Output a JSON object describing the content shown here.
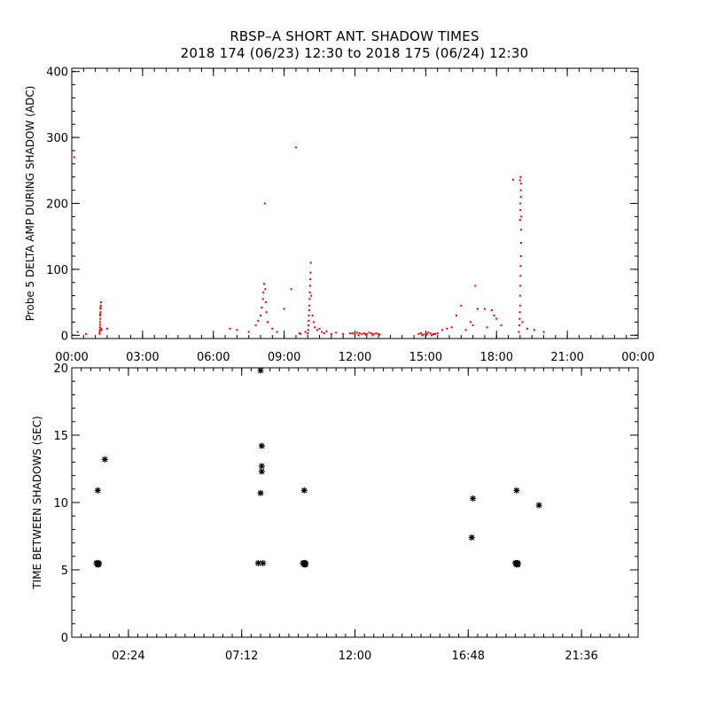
{
  "title_line1": "RBSP–A SHORT ANT. SHADOW TIMES",
  "title_line2": "2018 174 (06/23) 12:30 to 2018 175 (06/24) 12:30",
  "colors": {
    "series_top": "#dd0000",
    "series_bottom": "#000000",
    "axis": "#000000"
  },
  "chart_data": [
    {
      "type": "scatter",
      "ylabel": "Probe 5 DELTA AMP DURING SHADOW (ADC)",
      "xlabel": "",
      "xlim": [
        0,
        24
      ],
      "ylim": [
        -5,
        405
      ],
      "xticks": [
        0,
        3,
        6,
        9,
        12,
        15,
        18,
        21,
        24
      ],
      "xtick_labels": [
        "00:00",
        "03:00",
        "06:00",
        "09:00",
        "12:00",
        "15:00",
        "18:00",
        "21:00",
        "00:00"
      ],
      "yticks": [
        0,
        100,
        200,
        300,
        400
      ],
      "ytick_labels": [
        "0",
        "100",
        "200",
        "300",
        "400"
      ],
      "grid": false,
      "marker": "dot",
      "x": [
        0.1,
        0.25,
        0.6,
        1.18,
        1.18,
        1.19,
        1.19,
        1.2,
        1.2,
        1.21,
        1.21,
        1.22,
        1.22,
        1.23,
        1.24,
        1.25,
        1.26,
        1.2,
        1.22,
        1.5,
        6.7,
        7.0,
        7.5,
        7.8,
        7.9,
        8.0,
        8.05,
        8.1,
        8.12,
        8.15,
        8.18,
        8.2,
        8.22,
        8.25,
        8.3,
        8.5,
        8.7,
        9.0,
        9.3,
        9.5,
        9.65,
        9.7,
        9.9,
        10.0,
        10.02,
        10.03,
        10.04,
        10.05,
        10.06,
        10.07,
        10.08,
        10.09,
        10.1,
        10.11,
        10.12,
        10.13,
        10.15,
        10.2,
        10.25,
        10.3,
        10.4,
        10.5,
        10.6,
        10.7,
        10.8,
        11.0,
        11.2,
        11.5,
        11.8,
        11.9,
        12.0,
        12.1,
        12.2,
        12.3,
        12.4,
        12.5,
        12.6,
        12.7,
        12.8,
        12.9,
        13.0,
        13.05,
        12.15,
        12.45,
        12.75,
        14.7,
        14.8,
        14.9,
        15.0,
        15.1,
        15.2,
        15.3,
        15.4,
        15.5,
        14.85,
        15.05,
        15.25,
        15.35,
        15.7,
        15.9,
        16.1,
        16.3,
        16.5,
        16.7,
        16.9,
        17.0,
        17.1,
        17.2,
        17.5,
        17.6,
        17.8,
        17.9,
        18.0,
        18.2,
        18.7,
        18.95,
        18.97,
        18.98,
        18.99,
        19.0,
        19.0,
        19.01,
        19.02,
        19.02,
        19.03,
        19.04,
        19.05,
        19.0,
        19.01,
        19.03,
        19.02,
        19.0,
        19.04,
        19.03,
        19.01,
        19.05,
        19.1,
        19.3,
        19.6,
        20.0
      ],
      "y": [
        270,
        5,
        2,
        2,
        5,
        8,
        12,
        16,
        20,
        25,
        30,
        35,
        40,
        45,
        50,
        10,
        8,
        32,
        42,
        10,
        10,
        8,
        5,
        15,
        22,
        30,
        42,
        55,
        65,
        78,
        200,
        70,
        50,
        35,
        20,
        10,
        5,
        40,
        70,
        285,
        3,
        2,
        5,
        3,
        8,
        15,
        22,
        30,
        38,
        45,
        55,
        65,
        75,
        85,
        95,
        110,
        60,
        30,
        20,
        12,
        8,
        10,
        5,
        3,
        6,
        2,
        4,
        2,
        3,
        3,
        2,
        4,
        3,
        2,
        3,
        2,
        4,
        3,
        2,
        3,
        2,
        1,
        0,
        1,
        0,
        2,
        3,
        1,
        2,
        4,
        3,
        1,
        2,
        3,
        0,
        1,
        0,
        2,
        8,
        10,
        12,
        30,
        45,
        8,
        20,
        15,
        75,
        40,
        40,
        12,
        38,
        30,
        25,
        15,
        236,
        5,
        15,
        25,
        35,
        45,
        60,
        75,
        90,
        105,
        120,
        140,
        160,
        175,
        200,
        220,
        240,
        235,
        230,
        210,
        190,
        180,
        20,
        10,
        8,
        5
      ]
    },
    {
      "type": "scatter",
      "ylabel": "TIME BETWEEN SHADOWS (SEC)",
      "xlabel": "",
      "xlim": [
        0,
        24
      ],
      "ylim": [
        0,
        20
      ],
      "xticks": [
        2.4,
        7.2,
        12.0,
        16.8,
        21.6
      ],
      "xtick_labels": [
        "02:24",
        "07:12",
        "12:00",
        "16:48",
        "21:36"
      ],
      "yticks": [
        0,
        5,
        10,
        15,
        20
      ],
      "ytick_labels": [
        "0",
        "5",
        "10",
        "15",
        "20"
      ],
      "grid": false,
      "marker": "asterisk",
      "x": [
        1.05,
        1.1,
        1.15,
        1.08,
        1.13,
        1.1,
        1.4,
        7.9,
        8.0,
        8.05,
        8.05,
        8.05,
        8.0,
        8.1,
        9.8,
        9.85,
        9.9,
        9.85,
        9.9,
        9.85,
        16.95,
        17.0,
        18.8,
        18.85,
        18.9,
        18.85,
        18.9,
        18.85,
        19.8
      ],
      "y": [
        5.5,
        5.4,
        5.5,
        5.5,
        5.4,
        10.9,
        13.2,
        5.5,
        10.7,
        12.3,
        12.7,
        14.2,
        19.8,
        5.5,
        5.5,
        5.4,
        5.5,
        5.5,
        5.4,
        10.9,
        7.4,
        10.3,
        5.5,
        5.4,
        5.5,
        5.5,
        5.4,
        10.9,
        9.8
      ]
    }
  ]
}
